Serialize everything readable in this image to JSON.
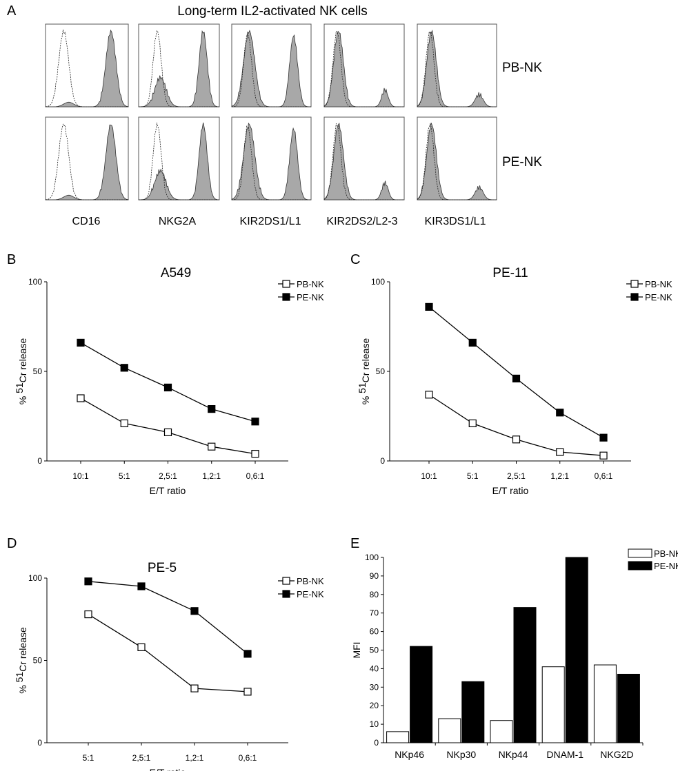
{
  "panel_a": {
    "letter": "A",
    "title": "Long-term IL2-activated NK cells",
    "rows": [
      "PB-NK",
      "PE-NK"
    ],
    "markers": [
      "CD16",
      "NKG2A",
      "KIR2DS1/L1",
      "KIR2DS2/L2-3",
      "KIR3DS1/L1"
    ]
  },
  "chart_data": [
    {
      "type": "line",
      "panel": "B",
      "title": "A549",
      "xlabel": "E/T ratio",
      "ylabel": "% 51Cr release",
      "categories": [
        "10:1",
        "5:1",
        "2,5:1",
        "1,2:1",
        "0,6:1"
      ],
      "ylim": [
        0,
        100
      ],
      "yticks": [
        "0",
        "50",
        "100"
      ],
      "legend": "top-right",
      "series": [
        {
          "name": "PB-NK",
          "marker": "open-square",
          "values": [
            35,
            21,
            16,
            8,
            4
          ]
        },
        {
          "name": "PE-NK",
          "marker": "filled-square",
          "values": [
            66,
            52,
            41,
            29,
            22
          ]
        }
      ]
    },
    {
      "type": "line",
      "panel": "C",
      "title": "PE-11",
      "xlabel": "E/T ratio",
      "ylabel": "% 51Cr release",
      "categories": [
        "10:1",
        "5:1",
        "2,5:1",
        "1,2:1",
        "0,6:1"
      ],
      "ylim": [
        0,
        100
      ],
      "yticks": [
        "0",
        "50",
        "100"
      ],
      "legend": "top-right",
      "series": [
        {
          "name": "PB-NK",
          "marker": "open-square",
          "values": [
            37,
            21,
            12,
            5,
            3
          ]
        },
        {
          "name": "PE-NK",
          "marker": "filled-square",
          "values": [
            86,
            66,
            46,
            27,
            13
          ]
        }
      ]
    },
    {
      "type": "line",
      "panel": "D",
      "title": "PE-5",
      "xlabel": "E/T ratio",
      "ylabel": "% 51Cr release",
      "categories": [
        "5:1",
        "2,5:1",
        "1,2:1",
        "0,6:1"
      ],
      "ylim": [
        0,
        100
      ],
      "yticks": [
        "0",
        "50",
        "100"
      ],
      "legend": "top-right",
      "series": [
        {
          "name": "PB-NK",
          "marker": "open-square",
          "values": [
            78,
            58,
            33,
            31
          ]
        },
        {
          "name": "PE-NK",
          "marker": "filled-square",
          "values": [
            98,
            95,
            80,
            54
          ]
        }
      ]
    },
    {
      "type": "bar",
      "panel": "E",
      "title": "",
      "xlabel": "",
      "ylabel": "MFI",
      "categories": [
        "NKp46",
        "NKp30",
        "NKp44",
        "DNAM-1",
        "NKG2D"
      ],
      "ylim": [
        0,
        100
      ],
      "yticks": [
        "0",
        "10",
        "20",
        "30",
        "40",
        "50",
        "60",
        "70",
        "80",
        "90",
        "100"
      ],
      "legend": "top-right",
      "series": [
        {
          "name": "PB-NK",
          "color": "#ffffff",
          "values": [
            6,
            13,
            12,
            41,
            42
          ]
        },
        {
          "name": "PE-NK",
          "color": "#000000",
          "values": [
            52,
            33,
            73,
            100,
            37
          ]
        }
      ]
    }
  ]
}
